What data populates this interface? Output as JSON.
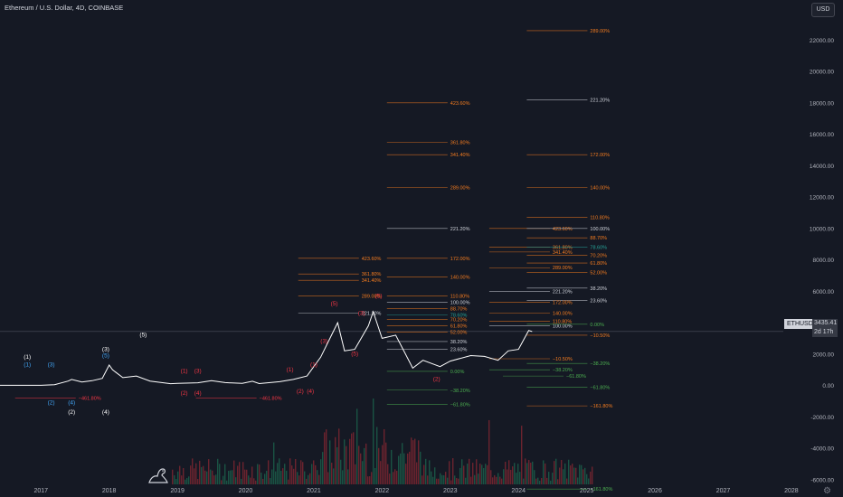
{
  "header": {
    "title": "Ethereum / U.S. Dollar, 4D, COINBASE",
    "currency_button": "USD"
  },
  "price_badge": {
    "symbol": "ETHUSD",
    "price": "3435.41",
    "countdown": "2d 17h"
  },
  "icons": {
    "logo": "tradingview-dino-icon",
    "settings": "gear-icon"
  },
  "colors": {
    "background": "#151924",
    "axis_text": "#b2b5be",
    "price_line": "#ffffff",
    "fib_orange": "#f57c1f",
    "fib_white": "#d1d4dc",
    "fib_red": "#f23645",
    "fib_green": "#4caf50",
    "fib_teal": "#26a69a",
    "wave_white": "#ffffff",
    "wave_blue": "#2962ff",
    "wave_red": "#f23645",
    "volume_green": "#1b5e4a",
    "volume_red": "#7a2630"
  },
  "chart_data": {
    "type": "line",
    "title": "Ethereum / U.S. Dollar, 4D, COINBASE",
    "xlabel": "",
    "ylabel": "",
    "x_ticks": [
      "2017",
      "2018",
      "2019",
      "2020",
      "2021",
      "2022",
      "2023",
      "2024",
      "2025",
      "2026",
      "2027",
      "2028"
    ],
    "y_ticks": [
      22000,
      20000,
      18000,
      16000,
      14000,
      12000,
      10000,
      8000,
      6000,
      4000,
      2000,
      0,
      -2000,
      -4000,
      -6000
    ],
    "y_tick_labels": [
      "22000.00",
      "20000.00",
      "18000.00",
      "16000.00",
      "14000.00",
      "12000.00",
      "10000.00",
      "8000.00",
      "6000.00",
      "4000.00",
      "2000.00",
      "0.00",
      "-2000.00",
      "-4000.00",
      "-6000.00"
    ],
    "ylim": [
      -6300,
      23400
    ],
    "xlim": [
      2016.4,
      2028.2
    ],
    "grid": false,
    "series": [
      {
        "name": "ETHUSD",
        "points": [
          [
            2016.4,
            10
          ],
          [
            2016.8,
            11
          ],
          [
            2017.0,
            10
          ],
          [
            2017.2,
            50
          ],
          [
            2017.4,
            280
          ],
          [
            2017.45,
            380
          ],
          [
            2017.6,
            220
          ],
          [
            2017.75,
            300
          ],
          [
            2017.9,
            450
          ],
          [
            2018.0,
            1300
          ],
          [
            2018.05,
            1000
          ],
          [
            2018.2,
            500
          ],
          [
            2018.4,
            600
          ],
          [
            2018.6,
            280
          ],
          [
            2018.9,
            110
          ],
          [
            2019.0,
            130
          ],
          [
            2019.3,
            170
          ],
          [
            2019.5,
            300
          ],
          [
            2019.7,
            180
          ],
          [
            2019.95,
            130
          ],
          [
            2020.1,
            270
          ],
          [
            2020.2,
            120
          ],
          [
            2020.5,
            240
          ],
          [
            2020.7,
            380
          ],
          [
            2020.9,
            600
          ],
          [
            2021.1,
            1800
          ],
          [
            2021.35,
            4000
          ],
          [
            2021.45,
            2200
          ],
          [
            2021.6,
            2300
          ],
          [
            2021.8,
            3800
          ],
          [
            2021.87,
            4700
          ],
          [
            2022.0,
            3000
          ],
          [
            2022.2,
            3200
          ],
          [
            2022.45,
            1100
          ],
          [
            2022.6,
            1600
          ],
          [
            2022.85,
            1200
          ],
          [
            2023.0,
            1550
          ],
          [
            2023.3,
            1900
          ],
          [
            2023.5,
            1850
          ],
          [
            2023.7,
            1600
          ],
          [
            2023.85,
            2200
          ],
          [
            2024.0,
            2300
          ],
          [
            2024.15,
            3500
          ],
          [
            2024.2,
            3435
          ]
        ]
      }
    ],
    "fibonacci_labels": [
      {
        "text": "289.00%",
        "x": 2025.05,
        "y": 22600,
        "color": "orange"
      },
      {
        "text": "423.60%",
        "x": 2023.0,
        "y": 18000,
        "color": "orange"
      },
      {
        "text": "221.20%",
        "x": 2025.05,
        "y": 18200,
        "color": "white"
      },
      {
        "text": "361.80%",
        "x": 2023.0,
        "y": 15500,
        "color": "orange"
      },
      {
        "text": "341.40%",
        "x": 2023.0,
        "y": 14700,
        "color": "orange"
      },
      {
        "text": "172.00%",
        "x": 2025.05,
        "y": 14700,
        "color": "orange"
      },
      {
        "text": "289.00%",
        "x": 2023.0,
        "y": 12600,
        "color": "orange"
      },
      {
        "text": "140.00%",
        "x": 2025.05,
        "y": 12600,
        "color": "orange"
      },
      {
        "text": "110.80%",
        "x": 2025.05,
        "y": 10700,
        "color": "orange"
      },
      {
        "text": "221.20%",
        "x": 2023.0,
        "y": 10000,
        "color": "white"
      },
      {
        "text": "423.60%",
        "x": 2024.5,
        "y": 10000,
        "color": "orange"
      },
      {
        "text": "100.00%",
        "x": 2025.05,
        "y": 10000,
        "color": "white"
      },
      {
        "text": "88.70%",
        "x": 2025.05,
        "y": 9400,
        "color": "orange"
      },
      {
        "text": "361.80%",
        "x": 2024.5,
        "y": 8800,
        "color": "orange"
      },
      {
        "text": "78.60%",
        "x": 2025.05,
        "y": 8800,
        "color": "teal"
      },
      {
        "text": "341.40%",
        "x": 2024.5,
        "y": 8500,
        "color": "orange"
      },
      {
        "text": "70.20%",
        "x": 2025.05,
        "y": 8300,
        "color": "orange"
      },
      {
        "text": "61.80%",
        "x": 2025.05,
        "y": 7800,
        "color": "orange"
      },
      {
        "text": "289.00%",
        "x": 2024.5,
        "y": 7500,
        "color": "orange"
      },
      {
        "text": "52.00%",
        "x": 2025.05,
        "y": 7200,
        "color": "orange"
      },
      {
        "text": "423.60%",
        "x": 2021.7,
        "y": 8100,
        "color": "orange"
      },
      {
        "text": "172.00%",
        "x": 2023.0,
        "y": 8100,
        "color": "orange"
      },
      {
        "text": "361.80%",
        "x": 2021.7,
        "y": 7100,
        "color": "orange"
      },
      {
        "text": "341.40%",
        "x": 2021.7,
        "y": 6700,
        "color": "orange"
      },
      {
        "text": "140.00%",
        "x": 2023.0,
        "y": 6900,
        "color": "orange"
      },
      {
        "text": "221.20%",
        "x": 2024.5,
        "y": 6000,
        "color": "white"
      },
      {
        "text": "38.20%",
        "x": 2025.05,
        "y": 6200,
        "color": "white"
      },
      {
        "text": "289.00%",
        "x": 2021.7,
        "y": 5700,
        "color": "orange"
      },
      {
        "text": "110.80%",
        "x": 2023.0,
        "y": 5700,
        "color": "orange"
      },
      {
        "text": "100.00%",
        "x": 2023.0,
        "y": 5300,
        "color": "white"
      },
      {
        "text": "23.60%",
        "x": 2025.05,
        "y": 5400,
        "color": "white"
      },
      {
        "text": "172.00%",
        "x": 2024.5,
        "y": 5300,
        "color": "orange"
      },
      {
        "text": "88.70%",
        "x": 2023.0,
        "y": 4900,
        "color": "orange"
      },
      {
        "text": "221.20%",
        "x": 2021.7,
        "y": 4600,
        "color": "white"
      },
      {
        "text": "78.60%",
        "x": 2023.0,
        "y": 4500,
        "color": "teal"
      },
      {
        "text": "140.00%",
        "x": 2024.5,
        "y": 4600,
        "color": "orange"
      },
      {
        "text": "70.20%",
        "x": 2023.0,
        "y": 4200,
        "color": "orange"
      },
      {
        "text": "61.80%",
        "x": 2023.0,
        "y": 3800,
        "color": "orange"
      },
      {
        "text": "110.80%",
        "x": 2024.5,
        "y": 4100,
        "color": "orange"
      },
      {
        "text": "100.00%",
        "x": 2024.5,
        "y": 3800,
        "color": "white"
      },
      {
        "text": "0.00%",
        "x": 2025.05,
        "y": 3900,
        "color": "green"
      },
      {
        "text": "52.00%",
        "x": 2023.0,
        "y": 3400,
        "color": "orange"
      },
      {
        "text": "−10.50%",
        "x": 2025.05,
        "y": 3200,
        "color": "orange"
      },
      {
        "text": "38.20%",
        "x": 2023.0,
        "y": 2800,
        "color": "white"
      },
      {
        "text": "23.60%",
        "x": 2023.0,
        "y": 2300,
        "color": "white"
      },
      {
        "text": "−38.20%",
        "x": 2025.05,
        "y": 1400,
        "color": "green"
      },
      {
        "text": "−61.80%",
        "x": 2024.7,
        "y": 600,
        "color": "green"
      },
      {
        "text": "−61.80%",
        "x": 2025.05,
        "y": -100,
        "color": "green"
      },
      {
        "text": "−10.50%",
        "x": 2024.5,
        "y": 1700,
        "color": "orange"
      },
      {
        "text": "−38.20%",
        "x": 2024.5,
        "y": 1000,
        "color": "green"
      },
      {
        "text": "0.00%",
        "x": 2023.0,
        "y": 900,
        "color": "green"
      },
      {
        "text": "−38.20%",
        "x": 2023.0,
        "y": -300,
        "color": "green"
      },
      {
        "text": "−61.80%",
        "x": 2023.0,
        "y": -1200,
        "color": "green"
      },
      {
        "text": "−161.80%",
        "x": 2025.05,
        "y": -1300,
        "color": "orange"
      },
      {
        "text": "−461.80%",
        "x": 2017.55,
        "y": -800,
        "color": "red"
      },
      {
        "text": "−461.80%",
        "x": 2020.2,
        "y": -800,
        "color": "red"
      },
      {
        "text": "−161.80%",
        "x": 2025.05,
        "y": -6600,
        "color": "green"
      }
    ],
    "wave_labels": [
      {
        "text": "(1)",
        "x": 2016.8,
        "y": 1700,
        "color": "white"
      },
      {
        "text": "(1)",
        "x": 2016.8,
        "y": 1200,
        "color": "blue"
      },
      {
        "text": "(3)",
        "x": 2017.15,
        "y": 1200,
        "color": "blue"
      },
      {
        "text": "(2)",
        "x": 2017.15,
        "y": -1200,
        "color": "blue"
      },
      {
        "text": "(4)",
        "x": 2017.45,
        "y": -1200,
        "color": "blue"
      },
      {
        "text": "(2)",
        "x": 2017.45,
        "y": -1800,
        "color": "white"
      },
      {
        "text": "(4)",
        "x": 2017.95,
        "y": -1800,
        "color": "white"
      },
      {
        "text": "(3)",
        "x": 2017.95,
        "y": 2200,
        "color": "white"
      },
      {
        "text": "(5)",
        "x": 2017.95,
        "y": 1800,
        "color": "blue"
      },
      {
        "text": "(5)",
        "x": 2018.5,
        "y": 3100,
        "color": "white"
      },
      {
        "text": "(1)",
        "x": 2019.1,
        "y": 800,
        "color": "red"
      },
      {
        "text": "(3)",
        "x": 2019.3,
        "y": 800,
        "color": "red"
      },
      {
        "text": "(2)",
        "x": 2019.1,
        "y": -600,
        "color": "red"
      },
      {
        "text": "(4)",
        "x": 2019.3,
        "y": -600,
        "color": "red"
      },
      {
        "text": "(1)",
        "x": 2020.65,
        "y": 900,
        "color": "red"
      },
      {
        "text": "(1)",
        "x": 2021.0,
        "y": 1200,
        "color": "red"
      },
      {
        "text": "(2)",
        "x": 2020.8,
        "y": -500,
        "color": "red"
      },
      {
        "text": "(4)",
        "x": 2020.95,
        "y": -500,
        "color": "red"
      },
      {
        "text": "(5)",
        "x": 2021.3,
        "y": 5100,
        "color": "red"
      },
      {
        "text": "(5)",
        "x": 2021.95,
        "y": 5600,
        "color": "red"
      },
      {
        "text": "(3)",
        "x": 2021.7,
        "y": 4500,
        "color": "red"
      },
      {
        "text": "(3)",
        "x": 2021.15,
        "y": 2700,
        "color": "red"
      },
      {
        "text": "(5)",
        "x": 2021.6,
        "y": 1900,
        "color": "red"
      },
      {
        "text": "(2)",
        "x": 2022.8,
        "y": 300,
        "color": "red"
      }
    ]
  }
}
